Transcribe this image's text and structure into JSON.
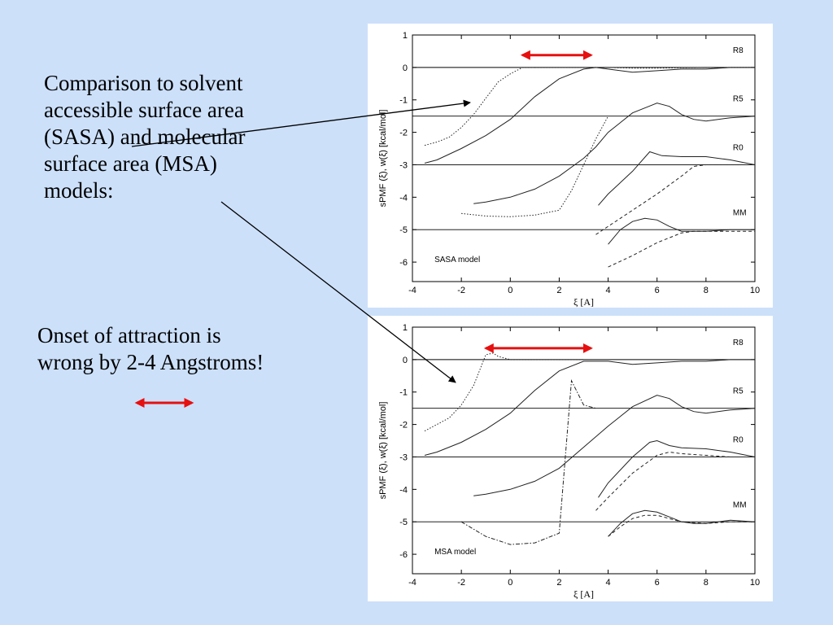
{
  "text1": {
    "lines": [
      "Comparison to solvent",
      "accessible surface area",
      "(SASA) and molecular",
      "surface area (MSA)",
      "models:"
    ]
  },
  "text2": {
    "lines": [
      "Onset of attraction is",
      "wrong by 2-4 Angstroms!"
    ]
  },
  "colors": {
    "background": "#cce0fa",
    "arrow_red": "#e61010",
    "line": "#000000"
  },
  "chart_data": [
    {
      "type": "line",
      "model_label": "SASA model",
      "ylabel": "sPMF (ξ), w(ξ) [kcal/mol]",
      "xlabel": "ξ [A]",
      "xlim": [
        -4,
        10
      ],
      "ylim": [
        -6.6,
        1
      ],
      "x_ticks": [
        -4,
        -2,
        0,
        2,
        4,
        6,
        8,
        10
      ],
      "y_ticks": [
        1,
        0,
        -1,
        -2,
        -3,
        -4,
        -5,
        -6
      ],
      "curve_labels": [
        {
          "text": "R8",
          "x": 9.1,
          "y": 0.45
        },
        {
          "text": "R5",
          "x": 9.1,
          "y": -1.05
        },
        {
          "text": "R0",
          "x": 9.1,
          "y": -2.55
        },
        {
          "text": "MM",
          "x": 9.1,
          "y": -4.55
        }
      ],
      "reference_lines": [
        0,
        -1.5,
        -3,
        -5
      ],
      "double_arrow": [
        0.5,
        3.3,
        0.38
      ],
      "series": [
        {
          "style": "dotted",
          "x": [
            -3.5,
            -3,
            -2.5,
            -2,
            -1.5,
            -1,
            -0.5,
            0,
            0.5,
            1
          ],
          "y": [
            -2.4,
            -2.3,
            -2.15,
            -1.85,
            -1.45,
            -0.95,
            -0.45,
            -0.2,
            0,
            0
          ]
        },
        {
          "style": "dotted",
          "x": [
            1,
            2,
            3,
            4,
            5,
            6,
            7,
            8,
            9,
            10
          ],
          "y": [
            0,
            0,
            0,
            0,
            -0.02,
            -0.02,
            -0.01,
            0,
            0,
            0
          ]
        },
        {
          "style": "solid",
          "x": [
            -3.5,
            -3,
            -2,
            -1,
            0,
            1,
            2,
            3,
            3.5,
            4,
            5,
            6,
            7,
            8,
            9,
            10
          ],
          "y": [
            -2.95,
            -2.85,
            -2.5,
            -2.1,
            -1.6,
            -0.9,
            -0.35,
            -0.05,
            0,
            -0.05,
            -0.15,
            -0.1,
            -0.05,
            -0.05,
            0,
            0
          ]
        },
        {
          "style": "solid",
          "x": [
            -1.5,
            -1,
            0,
            1,
            2,
            3,
            3.5,
            4,
            5,
            6,
            6.5,
            7,
            7.5,
            8,
            9,
            10
          ],
          "y": [
            -4.2,
            -4.15,
            -4,
            -3.75,
            -3.35,
            -2.8,
            -2.45,
            -2,
            -1.4,
            -1.1,
            -1.2,
            -1.45,
            -1.6,
            -1.65,
            -1.55,
            -1.5
          ]
        },
        {
          "style": "dotted",
          "x": [
            -2,
            -1,
            0,
            1,
            2,
            2.5,
            3,
            3.5,
            4
          ],
          "y": [
            -4.5,
            -4.58,
            -4.6,
            -4.55,
            -4.4,
            -3.8,
            -3,
            -2.2,
            -1.5
          ]
        },
        {
          "style": "solid",
          "x": [
            3.6,
            4,
            5,
            5.7,
            6.2,
            7,
            8,
            9,
            10
          ],
          "y": [
            -4.25,
            -3.9,
            -3.2,
            -2.6,
            -2.72,
            -2.75,
            -2.75,
            -2.85,
            -3
          ]
        },
        {
          "style": "dashed",
          "x": [
            3.5,
            4,
            5,
            6,
            7,
            7.5,
            8,
            9,
            10
          ],
          "y": [
            -5.15,
            -4.9,
            -4.4,
            -3.9,
            -3.35,
            -3.05,
            -3,
            -3,
            -3
          ]
        },
        {
          "style": "solid",
          "x": [
            4,
            4.5,
            5,
            5.5,
            6,
            6.5,
            7,
            7.5,
            8,
            9,
            10
          ],
          "y": [
            -5.45,
            -5,
            -4.75,
            -4.65,
            -4.7,
            -4.9,
            -5.05,
            -5.05,
            -5.05,
            -5,
            -5
          ]
        },
        {
          "style": "dashed",
          "x": [
            4,
            5,
            6,
            6.5,
            7,
            7.5,
            8,
            9,
            10
          ],
          "y": [
            -6.15,
            -5.8,
            -5.4,
            -5.25,
            -5.1,
            -5.05,
            -5.05,
            -5.05,
            -5.05
          ]
        }
      ]
    },
    {
      "type": "line",
      "model_label": "MSA model",
      "ylabel": "sPMF (ξ), w(ξ) [kcal/mol]",
      "xlabel": "ξ [A]",
      "xlim": [
        -4,
        10
      ],
      "ylim": [
        -6.6,
        1
      ],
      "x_ticks": [
        -4,
        -2,
        0,
        2,
        4,
        6,
        8,
        10
      ],
      "y_ticks": [
        1,
        0,
        -1,
        -2,
        -3,
        -4,
        -5,
        -6
      ],
      "curve_labels": [
        {
          "text": "R8",
          "x": 9.1,
          "y": 0.45
        },
        {
          "text": "R5",
          "x": 9.1,
          "y": -1.05
        },
        {
          "text": "R0",
          "x": 9.1,
          "y": -2.55
        },
        {
          "text": "MM",
          "x": 9.1,
          "y": -4.55
        }
      ],
      "reference_lines": [
        0,
        -1.5,
        -3,
        -5
      ],
      "double_arrow": [
        -1.0,
        3.3,
        0.35
      ],
      "series": [
        {
          "style": "dotted",
          "x": [
            -3.5,
            -3,
            -2.5,
            -2,
            -1.5,
            -1,
            -0.7,
            -0.5,
            0,
            1,
            2,
            3
          ],
          "y": [
            -2.2,
            -2,
            -1.8,
            -1.4,
            -0.8,
            0.15,
            0.2,
            0.1,
            0,
            0,
            0,
            0
          ]
        },
        {
          "style": "solid",
          "x": [
            -3.5,
            -3,
            -2,
            -1,
            0,
            1,
            2,
            3,
            4,
            5,
            6,
            7,
            8,
            9,
            10
          ],
          "y": [
            -2.95,
            -2.85,
            -2.55,
            -2.15,
            -1.65,
            -0.95,
            -0.35,
            -0.05,
            -0.05,
            -0.15,
            -0.1,
            -0.05,
            -0.05,
            0,
            0
          ]
        },
        {
          "style": "solid",
          "x": [
            -1.5,
            -1,
            0,
            1,
            2,
            3,
            4,
            5,
            6,
            6.5,
            7,
            7.5,
            8,
            9,
            10
          ],
          "y": [
            -4.2,
            -4.15,
            -4,
            -3.75,
            -3.35,
            -2.7,
            -2.05,
            -1.45,
            -1.1,
            -1.2,
            -1.45,
            -1.6,
            -1.65,
            -1.55,
            -1.5
          ]
        },
        {
          "style": "dashdot",
          "x": [
            -2,
            -1,
            0,
            1,
            1.5,
            2,
            2.5,
            3,
            3.5
          ],
          "y": [
            -5,
            -5.45,
            -5.7,
            -5.65,
            -5.5,
            -5.35,
            -0.65,
            -1.4,
            -1.5
          ]
        },
        {
          "style": "solid",
          "x": [
            3.6,
            4,
            5,
            5.7,
            6,
            6.5,
            7,
            8,
            9,
            10
          ],
          "y": [
            -4.25,
            -3.8,
            -3,
            -2.55,
            -2.5,
            -2.65,
            -2.72,
            -2.75,
            -2.85,
            -3
          ]
        },
        {
          "style": "dashed",
          "x": [
            3.5,
            4,
            5,
            6,
            6.5,
            7,
            8,
            9,
            10
          ],
          "y": [
            -4.65,
            -4.25,
            -3.5,
            -2.95,
            -2.85,
            -2.9,
            -2.95,
            -3,
            -3
          ]
        },
        {
          "style": "solid",
          "x": [
            4,
            4.5,
            5,
            5.5,
            6,
            6.5,
            7,
            7.5,
            8,
            9,
            10
          ],
          "y": [
            -5.45,
            -5.05,
            -4.75,
            -4.65,
            -4.7,
            -4.85,
            -5,
            -5.05,
            -5.05,
            -4.95,
            -5
          ]
        },
        {
          "style": "dashed",
          "x": [
            4,
            4.5,
            5,
            5.5,
            6,
            6.5,
            7,
            8,
            9,
            10
          ],
          "y": [
            -5.45,
            -5.15,
            -4.9,
            -4.8,
            -4.8,
            -4.9,
            -5,
            -5.05,
            -5,
            -5
          ]
        }
      ]
    }
  ]
}
